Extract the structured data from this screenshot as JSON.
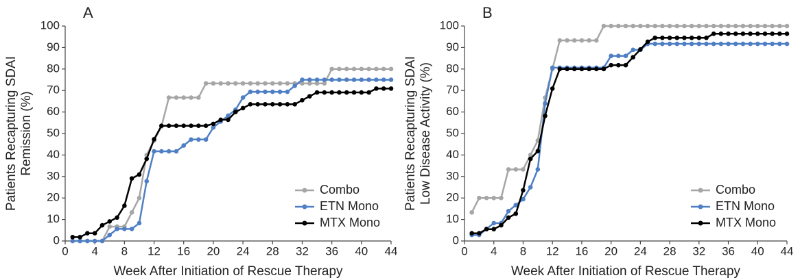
{
  "chart_data": [
    {
      "type": "line",
      "panel_label": "A",
      "x_label": "Week After Initiation of Rescue Therapy",
      "y_label": [
        "Patients Recapturing SDAI",
        "Remission (%)"
      ],
      "x": [
        1,
        2,
        3,
        4,
        5,
        6,
        7,
        8,
        9,
        10,
        11,
        12,
        13,
        14,
        15,
        16,
        17,
        18,
        19,
        20,
        21,
        22,
        23,
        24,
        25,
        26,
        27,
        28,
        29,
        30,
        31,
        32,
        33,
        34,
        35,
        36,
        37,
        38,
        39,
        40,
        41,
        42,
        43,
        44
      ],
      "xlim": [
        0,
        44
      ],
      "xticks": [
        0,
        4,
        8,
        12,
        16,
        20,
        24,
        28,
        32,
        36,
        40,
        44
      ],
      "ylim": [
        0,
        100
      ],
      "yticks": [
        0,
        10,
        20,
        30,
        40,
        50,
        60,
        70,
        80,
        90,
        100
      ],
      "legend": "lower right",
      "series": [
        {
          "name": "Combo",
          "color": "#a6a6a6",
          "values": [
            0,
            0,
            0,
            0,
            0,
            6.7,
            6.7,
            6.7,
            13.3,
            20,
            40,
            46.7,
            53.3,
            66.7,
            66.7,
            66.7,
            66.7,
            66.7,
            73.3,
            73.3,
            73.3,
            73.3,
            73.3,
            73.3,
            73.3,
            73.3,
            73.3,
            73.3,
            73.3,
            73.3,
            73.3,
            73.3,
            73.3,
            73.3,
            73.3,
            80,
            80,
            80,
            80,
            80,
            80,
            80,
            80,
            80
          ]
        },
        {
          "name": "ETN Mono",
          "color": "#4f7fc4",
          "values": [
            0,
            0,
            0,
            0,
            0,
            2.8,
            5.6,
            5.6,
            5.6,
            8.3,
            27.8,
            41.7,
            41.7,
            41.7,
            41.7,
            44.4,
            47.2,
            47.2,
            47.2,
            52.8,
            55.6,
            58.3,
            61.1,
            66.7,
            69.4,
            69.4,
            69.4,
            69.4,
            69.4,
            69.4,
            72.2,
            75,
            75,
            75,
            75,
            75,
            75,
            75,
            75,
            75,
            75,
            75,
            75,
            75
          ]
        },
        {
          "name": "MTX Mono",
          "color": "#000000",
          "values": [
            1.8,
            1.8,
            3.6,
            3.6,
            7.3,
            9.1,
            10.9,
            16.4,
            29.1,
            30.9,
            38.2,
            47.3,
            53.6,
            53.6,
            53.6,
            53.6,
            53.6,
            53.6,
            53.6,
            54.5,
            56.4,
            56.4,
            60,
            61.8,
            63.6,
            63.6,
            63.6,
            63.6,
            63.6,
            63.6,
            63.6,
            65.5,
            67.3,
            69.1,
            69.1,
            69.1,
            69.1,
            69.1,
            69.1,
            69.1,
            69.1,
            70.9,
            70.9,
            70.9
          ]
        }
      ]
    },
    {
      "type": "line",
      "panel_label": "B",
      "x_label": "Week After Initiation of Rescue Therapy",
      "y_label": [
        "Patients Recapturing SDAI",
        "Low Disease Activity (%)"
      ],
      "x": [
        1,
        2,
        3,
        4,
        5,
        6,
        7,
        8,
        9,
        10,
        11,
        12,
        13,
        14,
        15,
        16,
        17,
        18,
        19,
        20,
        21,
        22,
        23,
        24,
        25,
        26,
        27,
        28,
        29,
        30,
        31,
        32,
        33,
        34,
        35,
        36,
        37,
        38,
        39,
        40,
        41,
        42,
        43,
        44
      ],
      "xlim": [
        0,
        44
      ],
      "xticks": [
        0,
        4,
        8,
        12,
        16,
        20,
        24,
        28,
        32,
        36,
        40,
        44
      ],
      "ylim": [
        0,
        100
      ],
      "yticks": [
        0,
        10,
        20,
        30,
        40,
        50,
        60,
        70,
        80,
        90,
        100
      ],
      "legend": "lower right",
      "series": [
        {
          "name": "Combo",
          "color": "#a6a6a6",
          "values": [
            13.3,
            20,
            20,
            20,
            20,
            33.3,
            33.3,
            33.3,
            40,
            46.7,
            66.7,
            80,
            93.3,
            93.3,
            93.3,
            93.3,
            93.3,
            93.3,
            100,
            100,
            100,
            100,
            100,
            100,
            100,
            100,
            100,
            100,
            100,
            100,
            100,
            100,
            100,
            100,
            100,
            100,
            100,
            100,
            100,
            100,
            100,
            100,
            100,
            100
          ]
        },
        {
          "name": "ETN Mono",
          "color": "#4f7fc4",
          "values": [
            2.8,
            2.8,
            5.6,
            8.3,
            8.3,
            13.9,
            16.7,
            19.4,
            25,
            33.3,
            63.9,
            80.6,
            80.6,
            80.6,
            80.6,
            80.6,
            80.6,
            80.6,
            80.6,
            86.1,
            86.1,
            86.1,
            88.9,
            88.9,
            91.7,
            91.7,
            91.7,
            91.7,
            91.7,
            91.7,
            91.7,
            91.7,
            91.7,
            91.7,
            91.7,
            91.7,
            91.7,
            91.7,
            91.7,
            91.7,
            91.7,
            91.7,
            91.7,
            91.7
          ]
        },
        {
          "name": "MTX Mono",
          "color": "#000000",
          "values": [
            3.6,
            3.6,
            5.5,
            5.5,
            7.3,
            10.9,
            12.7,
            23.6,
            38.2,
            41.8,
            58.2,
            70.9,
            80,
            80,
            80,
            80,
            80,
            80,
            80,
            81.8,
            81.8,
            81.8,
            85.5,
            89.1,
            92.7,
            94.5,
            94.5,
            94.5,
            94.5,
            94.5,
            94.5,
            94.5,
            94.5,
            96.4,
            96.4,
            96.4,
            96.4,
            96.4,
            96.4,
            96.4,
            96.4,
            96.4,
            96.4,
            96.4
          ]
        }
      ]
    }
  ]
}
